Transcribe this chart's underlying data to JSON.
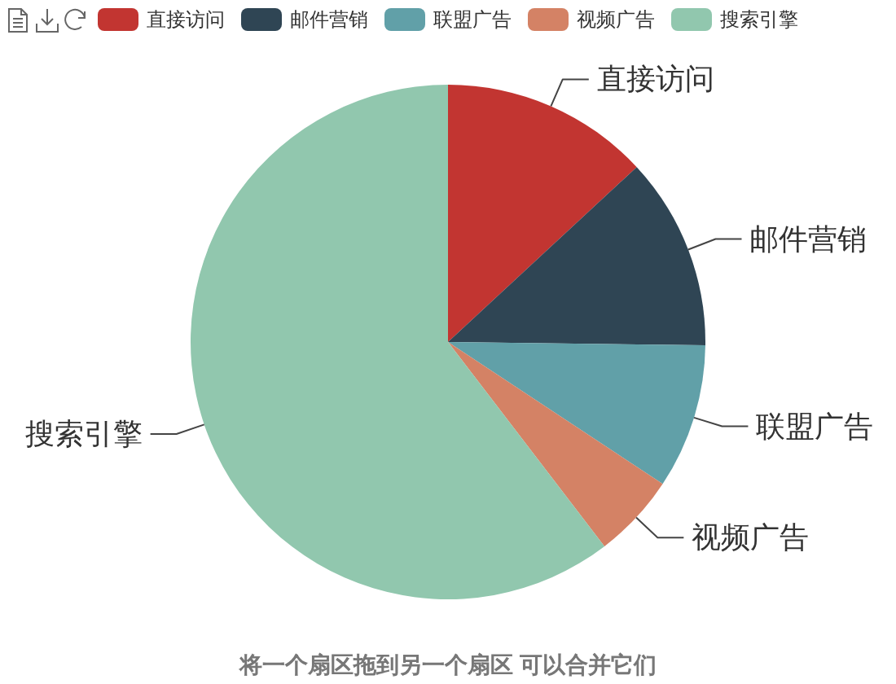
{
  "chart_data": {
    "type": "pie",
    "categories": [
      "直接访问",
      "邮件营销",
      "联盟广告",
      "视频广告",
      "搜索引擎"
    ],
    "values": [
      13.1,
      12.1,
      9.1,
      5.3,
      60.4
    ],
    "colors": [
      "#c23531",
      "#2f4554",
      "#61a0a8",
      "#d48265",
      "#91c7ae"
    ],
    "legend": "top",
    "annotations": [
      "将一个扇区拖到另一个扇区 可以合并它们"
    ]
  }
}
